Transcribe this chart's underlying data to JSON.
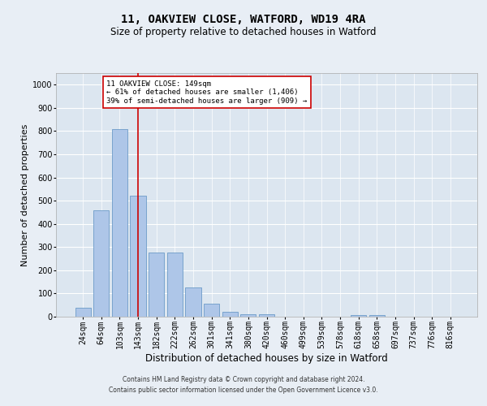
{
  "title1": "11, OAKVIEW CLOSE, WATFORD, WD19 4RA",
  "title2": "Size of property relative to detached houses in Watford",
  "xlabel": "Distribution of detached houses by size in Watford",
  "ylabel": "Number of detached properties",
  "categories": [
    "24sqm",
    "64sqm",
    "103sqm",
    "143sqm",
    "182sqm",
    "222sqm",
    "262sqm",
    "301sqm",
    "341sqm",
    "380sqm",
    "420sqm",
    "460sqm",
    "499sqm",
    "539sqm",
    "578sqm",
    "618sqm",
    "658sqm",
    "697sqm",
    "737sqm",
    "776sqm",
    "816sqm"
  ],
  "values": [
    40,
    460,
    810,
    520,
    275,
    275,
    125,
    57,
    22,
    12,
    12,
    0,
    0,
    0,
    0,
    8,
    8,
    0,
    0,
    0,
    0
  ],
  "bar_color": "#aec6e8",
  "bar_edge_color": "#5a8fc0",
  "vline_x": 3,
  "vline_color": "#cc0000",
  "annotation_text": "11 OAKVIEW CLOSE: 149sqm\n← 61% of detached houses are smaller (1,406)\n39% of semi-detached houses are larger (909) →",
  "annotation_box_color": "#ffffff",
  "annotation_box_edge": "#cc0000",
  "ylim": [
    0,
    1050
  ],
  "yticks": [
    0,
    100,
    200,
    300,
    400,
    500,
    600,
    700,
    800,
    900,
    1000
  ],
  "footer1": "Contains HM Land Registry data © Crown copyright and database right 2024.",
  "footer2": "Contains public sector information licensed under the Open Government Licence v3.0.",
  "bg_color": "#e8eef5",
  "plot_bg_color": "#dce6f0",
  "grid_color": "#ffffff",
  "title_fontsize": 10,
  "subtitle_fontsize": 8.5,
  "axis_label_fontsize": 8,
  "tick_fontsize": 7,
  "footer_fontsize": 5.5
}
